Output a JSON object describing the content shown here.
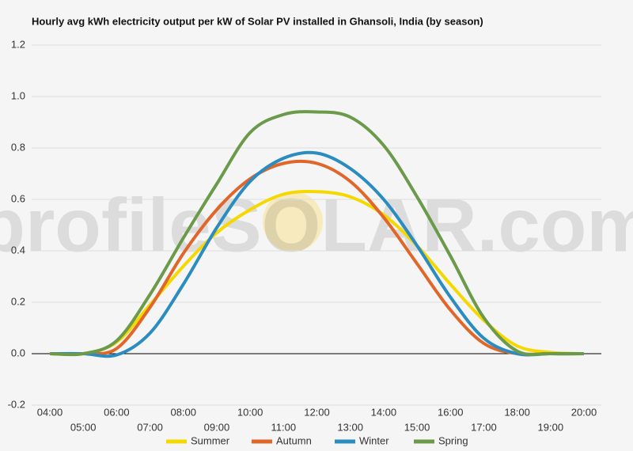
{
  "chart_data": {
    "type": "line",
    "title": "Hourly avg kWh electricity output per kW of Solar PV installed in Ghansoli, India (by season)",
    "watermark": "profileSOLAR.com",
    "categories": [
      "04:00",
      "05:00",
      "06:00",
      "07:00",
      "08:00",
      "09:00",
      "10:00",
      "11:00",
      "12:00",
      "13:00",
      "14:00",
      "15:00",
      "16:00",
      "17:00",
      "18:00",
      "19:00",
      "20:00"
    ],
    "series": [
      {
        "name": "Summer",
        "color": "#f5d800",
        "values": [
          0,
          0,
          0.045,
          0.19,
          0.34,
          0.47,
          0.56,
          0.62,
          0.63,
          0.61,
          0.54,
          0.42,
          0.27,
          0.13,
          0.03,
          0.005,
          0
        ]
      },
      {
        "name": "Autumn",
        "color": "#e0662a",
        "values": [
          0,
          0,
          0.02,
          0.18,
          0.39,
          0.56,
          0.68,
          0.74,
          0.74,
          0.67,
          0.53,
          0.35,
          0.17,
          0.04,
          0,
          0,
          0
        ]
      },
      {
        "name": "Winter",
        "color": "#2b8cc0",
        "values": [
          0,
          0,
          -0.005,
          0.08,
          0.27,
          0.49,
          0.67,
          0.76,
          0.78,
          0.72,
          0.6,
          0.42,
          0.22,
          0.06,
          0,
          0,
          0
        ]
      },
      {
        "name": "Spring",
        "color": "#6a9a4a",
        "values": [
          0,
          0,
          0.05,
          0.23,
          0.45,
          0.66,
          0.86,
          0.93,
          0.94,
          0.92,
          0.81,
          0.61,
          0.38,
          0.14,
          0.01,
          0,
          0
        ]
      }
    ],
    "ylim": [
      -0.2,
      1.2
    ],
    "yticks": [
      -0.2,
      {
        "value": 0,
        "label": "0.0"
      },
      0.2,
      0.4,
      0.6,
      0.8,
      {
        "value": 1,
        "label": "1.0"
      },
      1.2
    ],
    "grid": true,
    "legend": "bottom"
  }
}
